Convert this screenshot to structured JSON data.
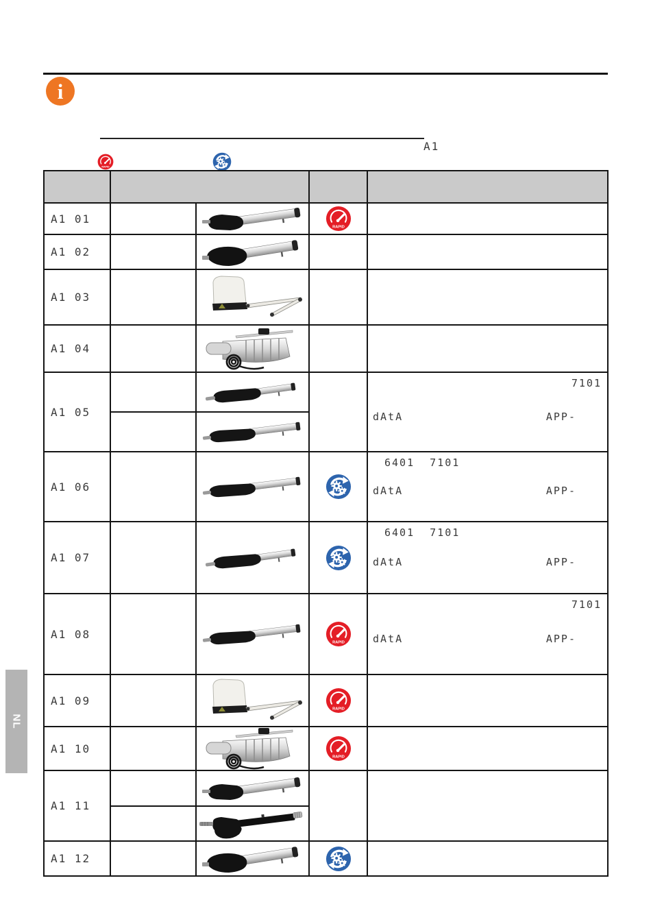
{
  "header": {
    "model_code": "A1",
    "info_icon_glyph": "i"
  },
  "icons": {
    "rapid_text": "RAPID"
  },
  "side_tab": {
    "label": "NL"
  },
  "colors": {
    "accent_orange": "#ee7623",
    "rapid_red": "#e41e26",
    "gear_blue": "#2d64ad",
    "header_gray": "#cacaca",
    "tab_gray": "#b4b4b4"
  },
  "table": {
    "rows": [
      {
        "code": "A1 01",
        "images": [
          "linear-actuator-small-head"
        ],
        "icon": "rapid",
        "text": null
      },
      {
        "code": "A1 02",
        "images": [
          "linear-actuator-large-head"
        ],
        "icon": null,
        "text": null
      },
      {
        "code": "A1 03",
        "images": [
          "articulated-arm-motor"
        ],
        "icon": null,
        "text": null
      },
      {
        "code": "A1 04",
        "images": [
          "underground-motor"
        ],
        "icon": null,
        "text": null
      },
      {
        "code": "A1 05",
        "images": [
          "slim-actuator-short",
          "slim-actuator-long"
        ],
        "icon": null,
        "text": {
          "top": "7101",
          "top_align": "right",
          "left": "dAtA",
          "right": "APP-"
        }
      },
      {
        "code": "A1 06",
        "images": [
          "slim-actuator-long"
        ],
        "icon": "gears",
        "text": {
          "top": "6401  7101",
          "top_align": "left",
          "left": "dAtA",
          "right": "APP-"
        }
      },
      {
        "code": "A1 07",
        "images": [
          "slim-actuator-short"
        ],
        "icon": "gears",
        "text": {
          "top": "6401  7101",
          "top_align": "left",
          "left": "dAtA",
          "right": "APP-"
        }
      },
      {
        "code": "A1 08",
        "images": [
          "slim-actuator-long"
        ],
        "icon": "rapid",
        "text": {
          "top": "7101",
          "top_align": "right",
          "left": "dAtA",
          "right": "APP-"
        }
      },
      {
        "code": "A1 09",
        "images": [
          "articulated-arm-motor"
        ],
        "icon": "rapid",
        "text": null
      },
      {
        "code": "A1 10",
        "images": [
          "underground-motor"
        ],
        "icon": "rapid",
        "text": null
      },
      {
        "code": "A1 11",
        "images": [
          "linear-actuator-small-head",
          "black-actuator"
        ],
        "icon": null,
        "text": null
      },
      {
        "code": "A1 12",
        "images": [
          "linear-actuator-large-head"
        ],
        "icon": "gears",
        "text": null
      }
    ]
  }
}
